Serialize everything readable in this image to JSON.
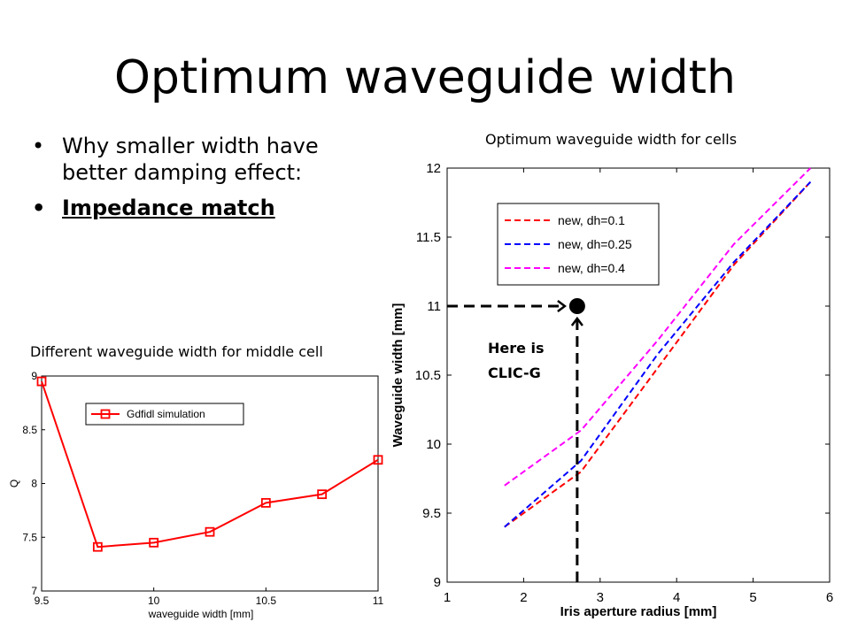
{
  "slide": {
    "title": "Optimum waveguide width",
    "bullets": [
      "Why smaller width have better damping effect:",
      "Impedance match"
    ],
    "caption_right": "Optimum waveguide width for cells",
    "caption_left": "Different waveguide width for middle cell",
    "annotation": [
      "Here is",
      "CLIC-G"
    ]
  },
  "chart_data": [
    {
      "type": "line",
      "title": "",
      "xlabel": "Iris aperture radius [mm]",
      "ylabel": "Waveguide width [mm]",
      "xlim": [
        1,
        6
      ],
      "ylim": [
        9,
        12
      ],
      "xticks": [
        1,
        2,
        3,
        4,
        5,
        6
      ],
      "yticks": [
        9,
        9.5,
        10,
        10.5,
        11,
        11.5,
        12
      ],
      "legend_position": "top-left",
      "series": [
        {
          "name": "new, dh=0.1",
          "color": "#ff0000",
          "x": [
            1.75,
            2.75,
            3.75,
            4.75,
            5.75
          ],
          "y": [
            9.4,
            9.8,
            10.55,
            11.3,
            11.9
          ]
        },
        {
          "name": "new, dh=0.25",
          "color": "#0000ff",
          "x": [
            1.75,
            2.75,
            3.75,
            4.75,
            5.75
          ],
          "y": [
            9.4,
            9.88,
            10.65,
            11.32,
            11.9
          ]
        },
        {
          "name": "new, dh=0.4",
          "color": "#ff00ff",
          "x": [
            1.75,
            2.75,
            3.75,
            4.75,
            5.75
          ],
          "y": [
            9.7,
            10.1,
            10.75,
            11.45,
            12.0
          ]
        }
      ],
      "marker": {
        "x": 2.7,
        "y": 11
      }
    },
    {
      "type": "line",
      "title": "",
      "xlabel": "waveguide width [mm]",
      "ylabel": "Q",
      "xlim": [
        9.5,
        11
      ],
      "ylim": [
        7,
        9
      ],
      "xticks": [
        9.5,
        10,
        10.5,
        11
      ],
      "yticks": [
        7,
        7.5,
        8,
        8.5,
        9
      ],
      "legend_position": "top-right",
      "series": [
        {
          "name": "Gdfidl simulation",
          "color": "#ff0000",
          "x": [
            9.5,
            9.75,
            10,
            10.25,
            10.5,
            10.75,
            11
          ],
          "y": [
            8.95,
            7.41,
            7.45,
            7.55,
            7.82,
            7.9,
            8.22
          ]
        }
      ]
    }
  ]
}
